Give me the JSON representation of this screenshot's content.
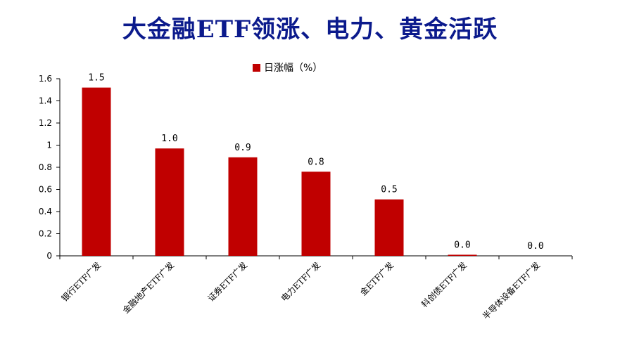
{
  "title": "大金融ETF领涨、电力、黄金活跃",
  "colors": {
    "title": "#0b1a8c",
    "bar": "#c00000",
    "axis": "#000000"
  },
  "chart_data": {
    "type": "bar",
    "categories": [
      "银行ETF广发",
      "金融地产ETF广发",
      "证券ETF广发",
      "电力ETF广发",
      "金ETF广发",
      "科创债ETF广发",
      "半导体设备ETF广发"
    ],
    "series": [
      {
        "name": "日涨幅（%）",
        "values": [
          1.52,
          0.97,
          0.89,
          0.76,
          0.51,
          0.01,
          0.0
        ]
      }
    ],
    "data_labels": [
      "1.5",
      "1.0",
      "0.9",
      "0.8",
      "0.5",
      "0.0",
      "0.0"
    ],
    "yticks": [
      "0",
      "0.2",
      "0.4",
      "0.6",
      "0.8",
      "1",
      "1.2",
      "1.4",
      "1.6"
    ],
    "ylim": [
      0,
      1.6
    ],
    "legend_position": "top-center",
    "grid": false
  }
}
